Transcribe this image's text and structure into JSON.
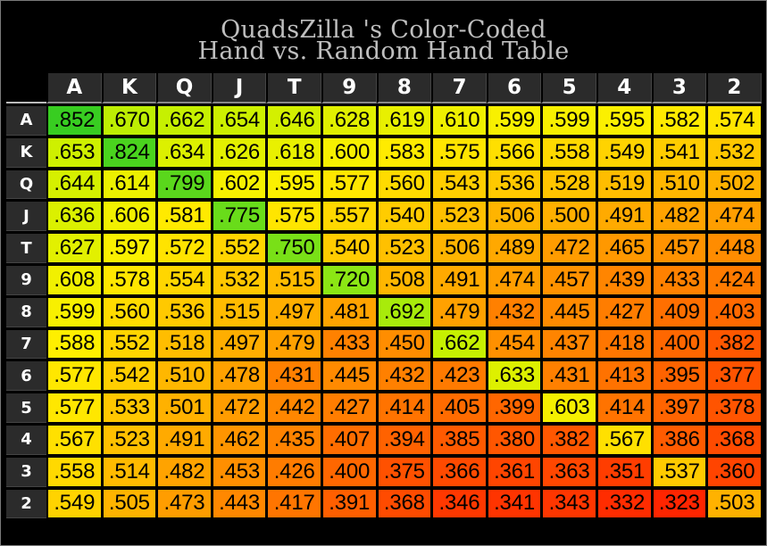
{
  "title": {
    "line1": "QuadsZilla 's Color-Coded",
    "line2": "Hand vs. Random Hand Table"
  },
  "colors": {
    "background": "#000000",
    "header_bg": "#2b2b2b",
    "header_text": "#ffffff",
    "title_text": "#bfbfbf",
    "scale_green": "#33cc22",
    "scale_yellow": "#ffff00",
    "scale_orange": "#ff9900",
    "scale_red": "#ff2200"
  },
  "chart_data": {
    "type": "heatmap",
    "title": "QuadsZilla 's Color-Coded Hand vs. Random Hand Table",
    "col_labels": [
      "A",
      "K",
      "Q",
      "J",
      "T",
      "9",
      "8",
      "7",
      "6",
      "5",
      "4",
      "3",
      "2"
    ],
    "row_labels": [
      "A",
      "K",
      "Q",
      "J",
      "T",
      "9",
      "8",
      "7",
      "6",
      "5",
      "4",
      "3",
      "2"
    ],
    "values": [
      [
        ".852",
        ".670",
        ".662",
        ".654",
        ".646",
        ".628",
        ".619",
        ".610",
        ".599",
        ".599",
        ".595",
        ".582",
        ".574"
      ],
      [
        ".653",
        ".824",
        ".634",
        ".626",
        ".618",
        ".600",
        ".583",
        ".575",
        ".566",
        ".558",
        ".549",
        ".541",
        ".532"
      ],
      [
        ".644",
        ".614",
        ".799",
        ".602",
        ".595",
        ".577",
        ".560",
        ".543",
        ".536",
        ".528",
        ".519",
        ".510",
        ".502"
      ],
      [
        ".636",
        ".606",
        ".581",
        ".775",
        ".575",
        ".557",
        ".540",
        ".523",
        ".506",
        ".500",
        ".491",
        ".482",
        ".474"
      ],
      [
        ".627",
        ".597",
        ".572",
        ".552",
        ".750",
        ".540",
        ".523",
        ".506",
        ".489",
        ".472",
        ".465",
        ".457",
        ".448"
      ],
      [
        ".608",
        ".578",
        ".554",
        ".532",
        ".515",
        ".720",
        ".508",
        ".491",
        ".474",
        ".457",
        ".439",
        ".433",
        ".424"
      ],
      [
        ".599",
        ".560",
        ".536",
        ".515",
        ".497",
        ".481",
        ".692",
        ".479",
        ".432",
        ".445",
        ".427",
        ".409",
        ".403"
      ],
      [
        ".588",
        ".552",
        ".518",
        ".497",
        ".479",
        ".433",
        ".450",
        ".662",
        ".454",
        ".437",
        ".418",
        ".400",
        ".382"
      ],
      [
        ".577",
        ".542",
        ".510",
        ".478",
        ".431",
        ".445",
        ".432",
        ".423",
        ".633",
        ".431",
        ".413",
        ".395",
        ".377"
      ],
      [
        ".577",
        ".533",
        ".501",
        ".472",
        ".442",
        ".427",
        ".414",
        ".405",
        ".399",
        ".603",
        ".414",
        ".397",
        ".378"
      ],
      [
        ".567",
        ".523",
        ".491",
        ".462",
        ".435",
        ".407",
        ".394",
        ".385",
        ".380",
        ".382",
        ".567",
        ".386",
        ".368"
      ],
      [
        ".558",
        ".514",
        ".482",
        ".453",
        ".426",
        ".400",
        ".375",
        ".366",
        ".361",
        ".363",
        ".351",
        ".537",
        ".360"
      ],
      [
        ".549",
        ".505",
        ".473",
        ".443",
        ".417",
        ".391",
        ".368",
        ".346",
        ".341",
        ".343",
        ".332",
        ".323",
        ".503"
      ]
    ]
  }
}
